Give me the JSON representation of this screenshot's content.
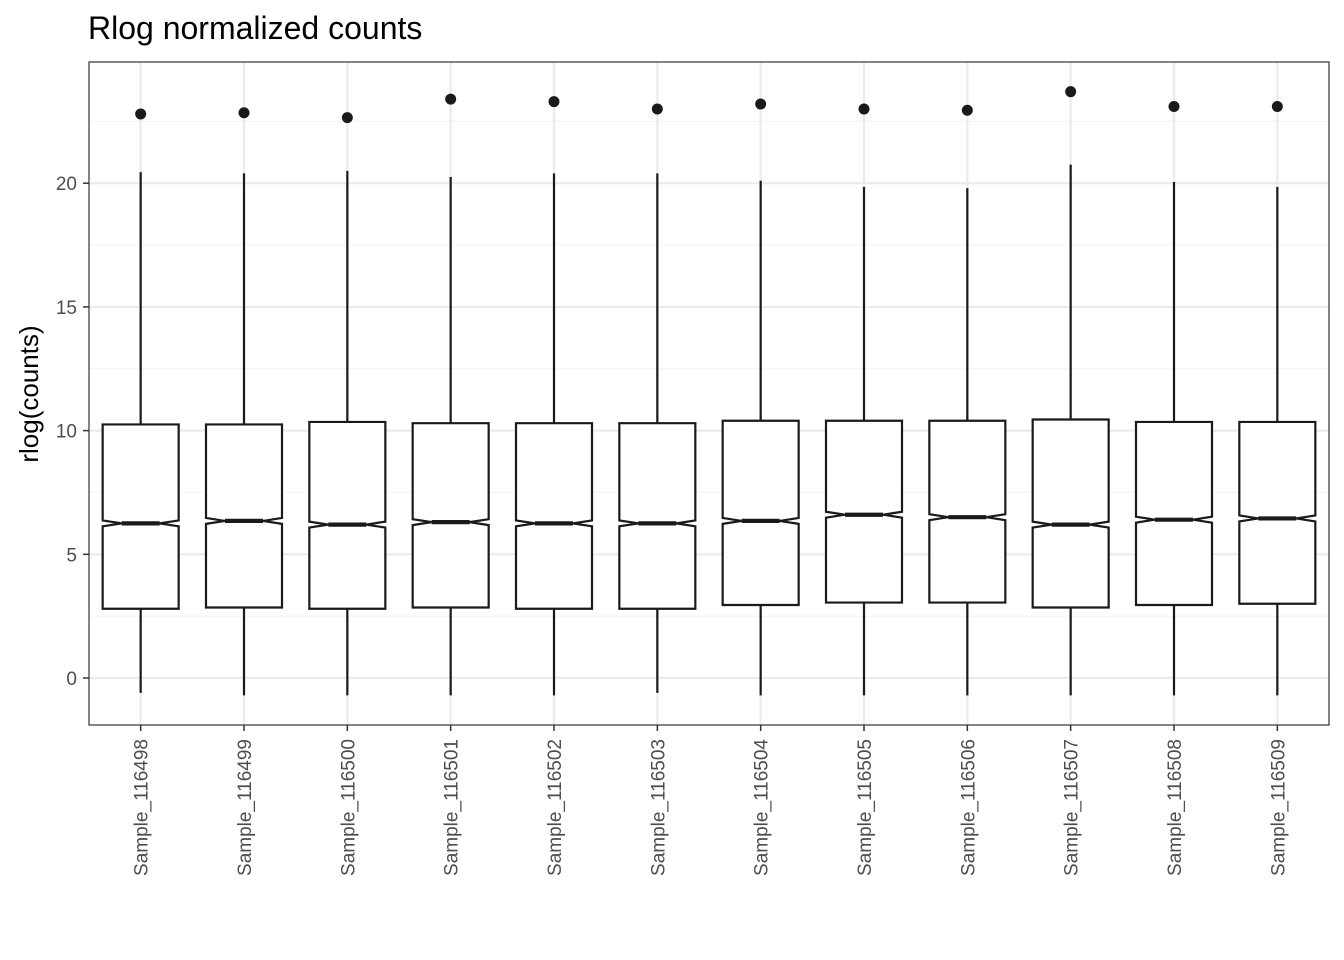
{
  "chart_data": {
    "type": "boxplot",
    "title": "Rlog normalized counts",
    "xlabel": "",
    "ylabel": "rlog(counts)",
    "ylim": [
      -1.9,
      24.9
    ],
    "y_ticks": [
      0,
      5,
      10,
      15,
      20
    ],
    "grid": true,
    "notched": true,
    "categories": [
      "Sample_116498",
      "Sample_116499",
      "Sample_116500",
      "Sample_116501",
      "Sample_116502",
      "Sample_116503",
      "Sample_116504",
      "Sample_116505",
      "Sample_116506",
      "Sample_116507",
      "Sample_116508",
      "Sample_116509"
    ],
    "boxes": [
      {
        "lower_whisker": -0.6,
        "q1": 2.8,
        "median": 6.25,
        "q3": 10.25,
        "upper_whisker": 20.45,
        "outliers": [
          22.8
        ]
      },
      {
        "lower_whisker": -0.7,
        "q1": 2.85,
        "median": 6.35,
        "q3": 10.25,
        "upper_whisker": 20.4,
        "outliers": [
          22.85
        ]
      },
      {
        "lower_whisker": -0.7,
        "q1": 2.8,
        "median": 6.2,
        "q3": 10.35,
        "upper_whisker": 20.5,
        "outliers": [
          22.65
        ]
      },
      {
        "lower_whisker": -0.7,
        "q1": 2.85,
        "median": 6.3,
        "q3": 10.3,
        "upper_whisker": 20.25,
        "outliers": [
          23.4
        ]
      },
      {
        "lower_whisker": -0.7,
        "q1": 2.8,
        "median": 6.25,
        "q3": 10.3,
        "upper_whisker": 20.4,
        "outliers": [
          23.3
        ]
      },
      {
        "lower_whisker": -0.6,
        "q1": 2.8,
        "median": 6.25,
        "q3": 10.3,
        "upper_whisker": 20.4,
        "outliers": [
          23.0
        ]
      },
      {
        "lower_whisker": -0.7,
        "q1": 2.95,
        "median": 6.35,
        "q3": 10.4,
        "upper_whisker": 20.1,
        "outliers": [
          23.2
        ]
      },
      {
        "lower_whisker": -0.7,
        "q1": 3.05,
        "median": 6.6,
        "q3": 10.4,
        "upper_whisker": 19.85,
        "outliers": [
          23.0
        ]
      },
      {
        "lower_whisker": -0.7,
        "q1": 3.05,
        "median": 6.5,
        "q3": 10.4,
        "upper_whisker": 19.8,
        "outliers": [
          22.95
        ]
      },
      {
        "lower_whisker": -0.7,
        "q1": 2.85,
        "median": 6.2,
        "q3": 10.45,
        "upper_whisker": 20.75,
        "outliers": [
          23.7
        ]
      },
      {
        "lower_whisker": -0.7,
        "q1": 2.95,
        "median": 6.4,
        "q3": 10.35,
        "upper_whisker": 20.05,
        "outliers": [
          23.1
        ]
      },
      {
        "lower_whisker": -0.7,
        "q1": 3.0,
        "median": 6.45,
        "q3": 10.35,
        "upper_whisker": 19.85,
        "outliers": [
          23.1
        ]
      }
    ],
    "colors": {
      "box_fill": "#ffffff",
      "stroke": "#1a1a1a",
      "grid_major": "#ebebeb",
      "grid_minor": "#f4f4f4",
      "panel_border": "#333333",
      "text": "#4d4d4d"
    }
  }
}
